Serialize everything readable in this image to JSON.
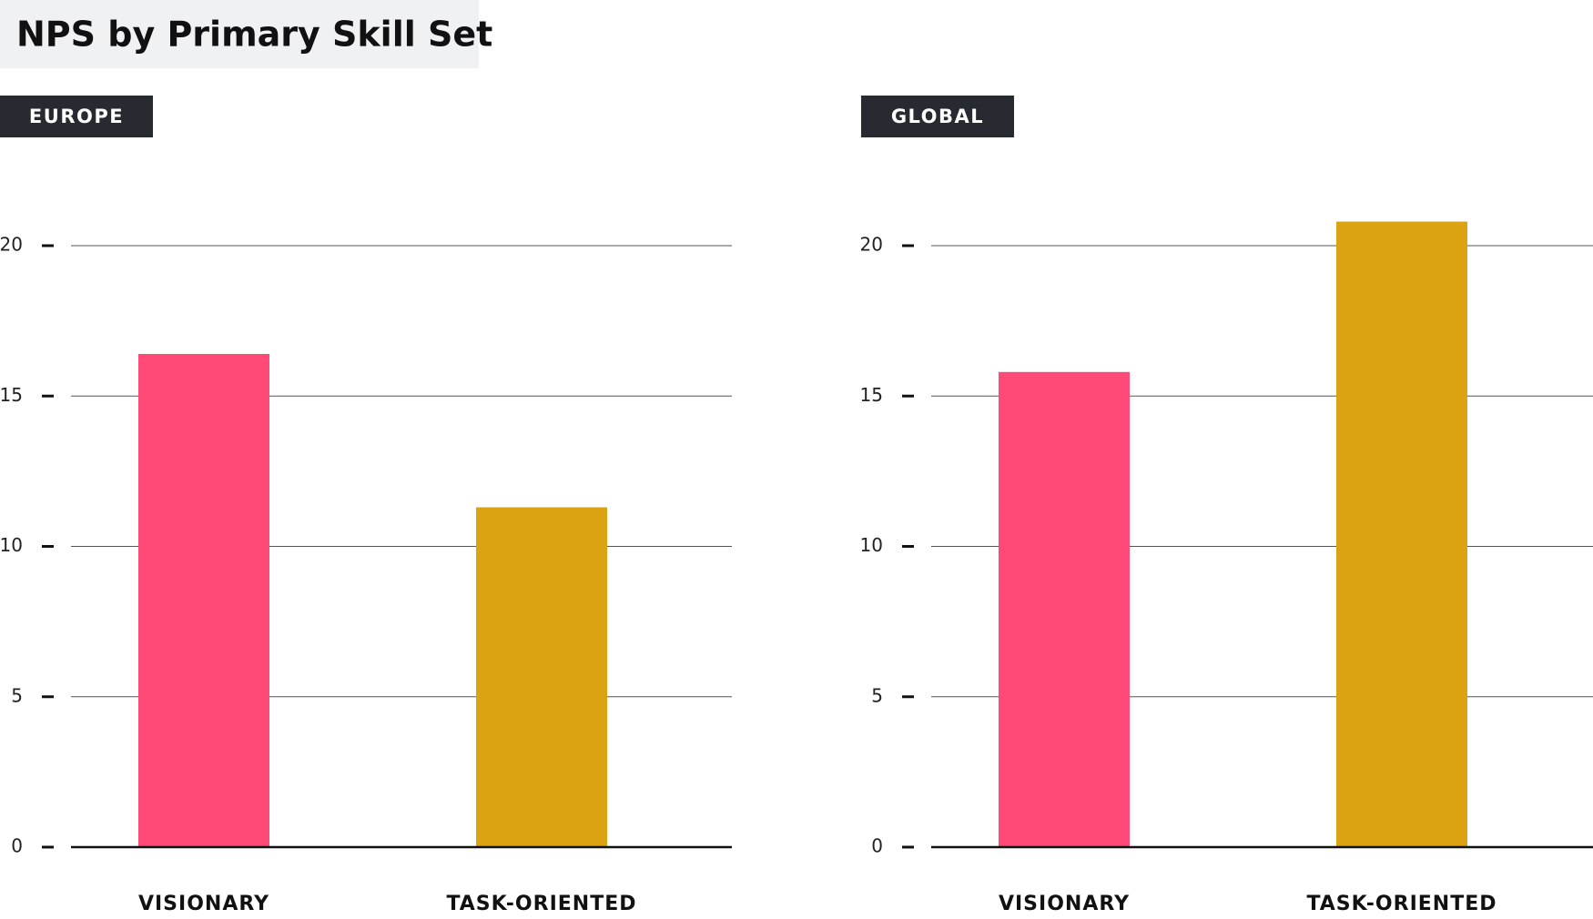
{
  "title": "NPS by Primary Skill Set",
  "chart_data": [
    {
      "type": "bar",
      "title": "EUROPE",
      "categories": [
        "VISIONARY",
        "TASK-ORIENTED"
      ],
      "values": [
        16.4,
        11.3
      ],
      "colors": [
        "#ff4a77",
        "#dba212"
      ],
      "ylim": [
        0,
        21
      ],
      "yticks": [
        0,
        5,
        10,
        15,
        20
      ],
      "grid": true
    },
    {
      "type": "bar",
      "title": "GLOBAL",
      "categories": [
        "VISIONARY",
        "TASK-ORIENTED"
      ],
      "values": [
        15.8,
        20.8
      ],
      "colors": [
        "#ff4a77",
        "#dba212"
      ],
      "ylim": [
        0,
        21
      ],
      "yticks": [
        0,
        5,
        10,
        15,
        20
      ],
      "grid": true
    }
  ]
}
